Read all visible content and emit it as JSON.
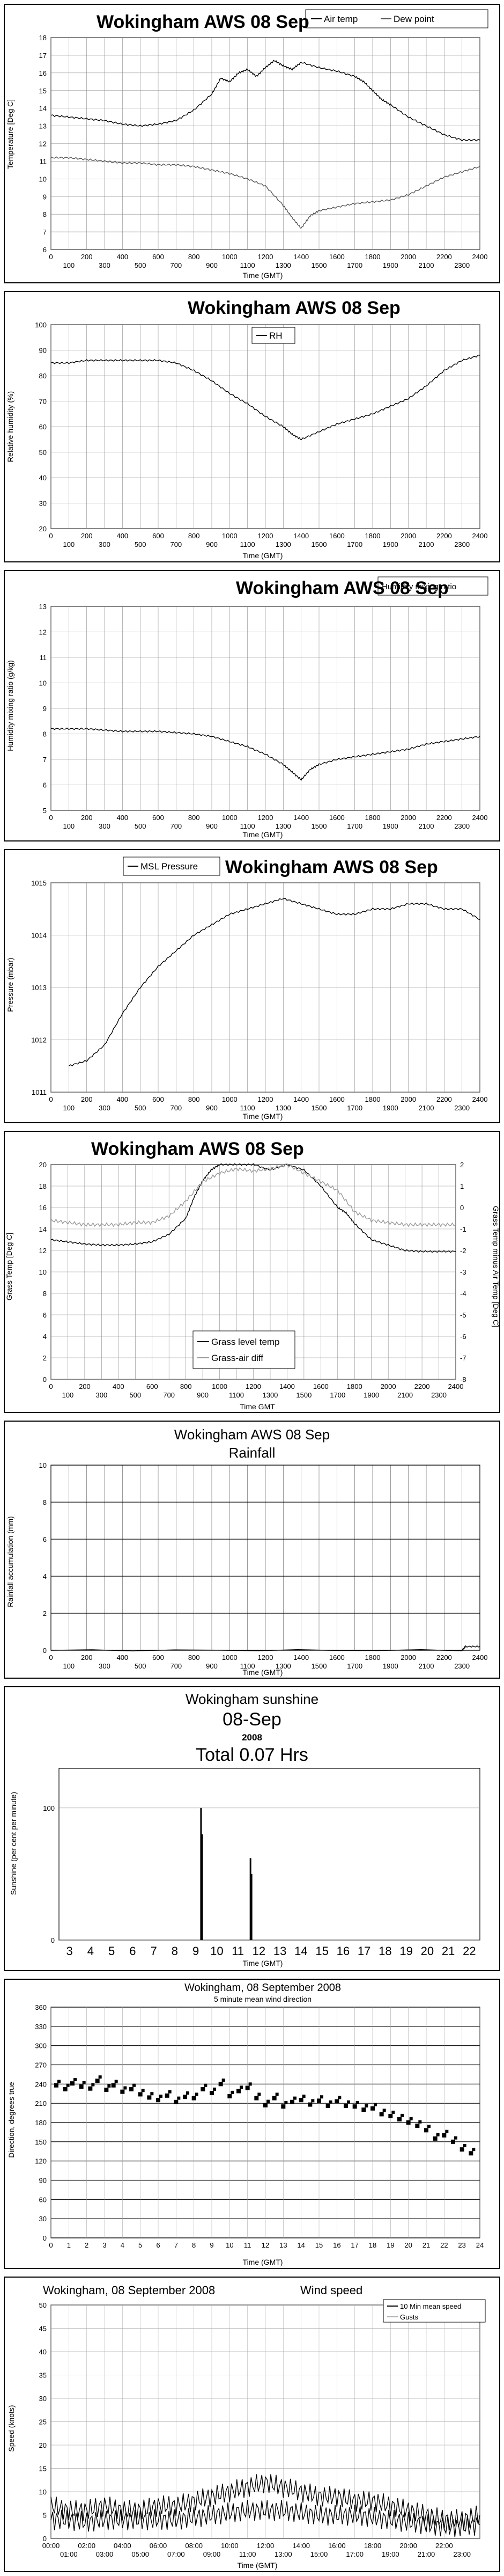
{
  "charts": [
    {
      "type": "line",
      "title": "Wokingham AWS 08 Sep",
      "xlabel": "Time (GMT)",
      "ylabel": "Temperature [Deg C]",
      "ylim": [
        6,
        18
      ],
      "yticks": [
        6,
        7,
        8,
        9,
        10,
        11,
        12,
        13,
        14,
        15,
        16,
        17,
        18
      ],
      "xticks_top": [
        "0",
        "200",
        "400",
        "600",
        "800",
        "1000",
        "1200",
        "1400",
        "1600",
        "1800",
        "2000",
        "2200",
        "2400"
      ],
      "xticks_bottom": [
        "100",
        "300",
        "500",
        "700",
        "900",
        "1100",
        "1300",
        "1500",
        "1700",
        "1900",
        "2100",
        "2300"
      ],
      "series": [
        {
          "name": "Air temp",
          "x": [
            0,
            100,
            200,
            300,
            400,
            500,
            600,
            700,
            800,
            900,
            950,
            1000,
            1050,
            1100,
            1150,
            1200,
            1250,
            1300,
            1350,
            1400,
            1500,
            1600,
            1700,
            1750,
            1800,
            1850,
            1900,
            2000,
            2100,
            2200,
            2300,
            2400
          ],
          "y": [
            13.6,
            13.5,
            13.4,
            13.3,
            13.1,
            13.0,
            13.1,
            13.3,
            13.9,
            14.8,
            15.7,
            15.5,
            16.0,
            16.2,
            15.8,
            16.3,
            16.7,
            16.4,
            16.2,
            16.6,
            16.3,
            16.1,
            15.8,
            15.5,
            15.0,
            14.5,
            14.2,
            13.5,
            13.0,
            12.5,
            12.2,
            12.2
          ]
        },
        {
          "name": "Dew point",
          "x": [
            0,
            100,
            200,
            300,
            400,
            500,
            600,
            700,
            800,
            900,
            1000,
            1100,
            1200,
            1300,
            1350,
            1400,
            1450,
            1500,
            1600,
            1700,
            1800,
            1900,
            2000,
            2100,
            2200,
            2300,
            2400
          ],
          "y": [
            11.2,
            11.2,
            11.1,
            11.0,
            10.9,
            10.9,
            10.8,
            10.8,
            10.7,
            10.5,
            10.3,
            10.0,
            9.6,
            8.5,
            7.8,
            7.2,
            7.9,
            8.2,
            8.4,
            8.6,
            8.7,
            8.8,
            9.1,
            9.6,
            10.1,
            10.4,
            10.7
          ]
        }
      ]
    },
    {
      "type": "line",
      "title": "Wokingham AWS 08 Sep",
      "xlabel": "Time (GMT)",
      "ylabel": "Relative humidity (%)",
      "ylim": [
        20,
        100
      ],
      "yticks": [
        20,
        30,
        40,
        50,
        60,
        70,
        80,
        90,
        100
      ],
      "xticks_top": [
        "0",
        "200",
        "400",
        "600",
        "800",
        "1000",
        "1200",
        "1400",
        "1600",
        "1800",
        "2000",
        "2200",
        "2400"
      ],
      "xticks_bottom": [
        "100",
        "300",
        "500",
        "700",
        "900",
        "1100",
        "1300",
        "1500",
        "1700",
        "1900",
        "2100",
        "2300"
      ],
      "series": [
        {
          "name": "RH",
          "x": [
            0,
            100,
            200,
            300,
            400,
            500,
            600,
            700,
            800,
            900,
            1000,
            1100,
            1200,
            1300,
            1350,
            1400,
            1500,
            1600,
            1700,
            1800,
            1900,
            2000,
            2100,
            2200,
            2300,
            2400
          ],
          "y": [
            85,
            85,
            86,
            86,
            86,
            86,
            86,
            85,
            82,
            78,
            73,
            69,
            64,
            60,
            57,
            55,
            58,
            61,
            63,
            65,
            68,
            71,
            76,
            82,
            86,
            88
          ]
        }
      ]
    },
    {
      "type": "line",
      "title": "Wokingham AWS 08 Sep",
      "xlabel": "Time (GMT)",
      "ylabel": "Humidity mixing ratio (g/kg)",
      "ylim": [
        5,
        13
      ],
      "yticks": [
        5,
        6,
        7,
        8,
        9,
        10,
        11,
        12,
        13
      ],
      "xticks_top": [
        "0",
        "200",
        "400",
        "600",
        "800",
        "1000",
        "1200",
        "1400",
        "1600",
        "1800",
        "2000",
        "2200",
        "2400"
      ],
      "xticks_bottom": [
        "100",
        "300",
        "500",
        "700",
        "900",
        "1100",
        "1300",
        "1500",
        "1700",
        "1900",
        "2100",
        "2300"
      ],
      "series": [
        {
          "name": "Humidity mixing ratio",
          "x": [
            0,
            100,
            200,
            300,
            400,
            500,
            600,
            700,
            800,
            900,
            1000,
            1100,
            1200,
            1300,
            1350,
            1400,
            1450,
            1500,
            1600,
            1700,
            1800,
            1900,
            2000,
            2100,
            2200,
            2300,
            2400
          ],
          "y": [
            8.2,
            8.2,
            8.2,
            8.15,
            8.1,
            8.1,
            8.1,
            8.05,
            8.0,
            7.9,
            7.7,
            7.5,
            7.2,
            6.8,
            6.5,
            6.2,
            6.6,
            6.8,
            7.0,
            7.1,
            7.2,
            7.3,
            7.4,
            7.6,
            7.7,
            7.8,
            7.9
          ]
        }
      ]
    },
    {
      "type": "line",
      "title": "Wokingham AWS 08 Sep",
      "xlabel": "Time (GMT)",
      "ylabel": "Pressure (mbar)",
      "ylim": [
        1011,
        1015
      ],
      "yticks": [
        1011,
        1012,
        1013,
        1014,
        1015
      ],
      "xticks_top": [
        "0",
        "200",
        "400",
        "600",
        "800",
        "1000",
        "1200",
        "1400",
        "1600",
        "1800",
        "2000",
        "2200",
        "2400"
      ],
      "xticks_bottom": [
        "100",
        "300",
        "500",
        "700",
        "900",
        "1100",
        "1300",
        "1500",
        "1700",
        "1900",
        "2100",
        "2300"
      ],
      "series": [
        {
          "name": "MSL Pressure",
          "x": [
            100,
            200,
            300,
            400,
            500,
            600,
            700,
            800,
            900,
            1000,
            1100,
            1200,
            1300,
            1400,
            1500,
            1600,
            1700,
            1800,
            1900,
            2000,
            2100,
            2200,
            2300,
            2400
          ],
          "y": [
            1011.5,
            1011.6,
            1011.9,
            1012.5,
            1013.0,
            1013.4,
            1013.7,
            1014.0,
            1014.2,
            1014.4,
            1014.5,
            1014.6,
            1014.7,
            1014.6,
            1014.5,
            1014.4,
            1014.4,
            1014.5,
            1014.5,
            1014.6,
            1014.6,
            1014.5,
            1014.5,
            1014.3
          ]
        }
      ]
    },
    {
      "type": "line",
      "title": "Wokingham AWS 08 Sep",
      "xlabel": "Time GMT",
      "ylabel": "Grass Temp [Deg C]",
      "ylabel_right": "Grass Temp minus Air Temp [Deg C]",
      "ylim": [
        0,
        20
      ],
      "ylim_right": [
        -8,
        2
      ],
      "yticks": [
        0,
        2,
        4,
        6,
        8,
        10,
        12,
        14,
        16,
        18,
        20
      ],
      "yticks_right": [
        -8,
        -7,
        -6,
        -5,
        -4,
        -3,
        -2,
        -1,
        0,
        1,
        2
      ],
      "xticks_top": [
        "0",
        "200",
        "400",
        "600",
        "800",
        "1000",
        "1200",
        "1400",
        "1600",
        "1800",
        "2000",
        "2200",
        "2400"
      ],
      "xticks_bottom": [
        "100",
        "300",
        "500",
        "700",
        "900",
        "1100",
        "1300",
        "1500",
        "1700",
        "1900",
        "2100",
        "2300"
      ],
      "series": [
        {
          "name": "Grass level temp",
          "x": [
            0,
            100,
            200,
            300,
            400,
            500,
            600,
            700,
            800,
            850,
            900,
            950,
            1000,
            1100,
            1200,
            1300,
            1400,
            1500,
            1600,
            1700,
            1750,
            1800,
            1900,
            2000,
            2100,
            2200,
            2300,
            2400
          ],
          "y": [
            13.0,
            12.8,
            12.6,
            12.5,
            12.5,
            12.6,
            12.8,
            13.5,
            15.0,
            17.0,
            18.5,
            19.5,
            20.0,
            20.0,
            20.0,
            19.5,
            20.0,
            19.5,
            18.0,
            16.0,
            15.5,
            14.5,
            13.0,
            12.5,
            12.0,
            11.9,
            11.9,
            11.9
          ]
        },
        {
          "name": "Grass-air diff",
          "x": [
            0,
            100,
            200,
            300,
            400,
            500,
            600,
            700,
            800,
            900,
            1000,
            1100,
            1200,
            1300,
            1400,
            1500,
            1600,
            1700,
            1800,
            1900,
            2000,
            2100,
            2200,
            2300,
            2400
          ],
          "y": [
            -0.6,
            -0.7,
            -0.8,
            -0.8,
            -0.8,
            -0.7,
            -0.7,
            -0.4,
            0.3,
            1.2,
            1.6,
            1.8,
            1.7,
            1.8,
            2.0,
            1.6,
            1.2,
            0.8,
            -0.2,
            -0.6,
            -0.7,
            -0.8,
            -0.8,
            -0.8,
            -0.8
          ],
          "axis": "right"
        }
      ]
    },
    {
      "type": "line",
      "title": "Wokingham AWS 08 Sep",
      "subtitle": "Rainfall",
      "xlabel": "Time (GMT)",
      "ylabel": "Rainfall accumulation (mm)",
      "ylim": [
        0,
        10
      ],
      "yticks": [
        0,
        2,
        4,
        6,
        8,
        10
      ],
      "xticks_top": [
        "0",
        "200",
        "400",
        "600",
        "800",
        "1000",
        "1200",
        "1400",
        "1600",
        "1800",
        "2000",
        "2200",
        "2400"
      ],
      "xticks_bottom": [
        "100",
        "300",
        "500",
        "700",
        "900",
        "1100",
        "1300",
        "1500",
        "1700",
        "1900",
        "2100",
        "2300"
      ],
      "series": [
        {
          "name": "Rainfall",
          "x": [
            0,
            2300,
            2320,
            2400
          ],
          "y": [
            0,
            0,
            0.2,
            0.2
          ]
        }
      ]
    },
    {
      "type": "bar",
      "title": "Wokingham sunshine",
      "date": "08-Sep",
      "year": "2008",
      "total": "Total 0.07 Hrs",
      "xlabel": "Time (GMT)",
      "ylabel": "Sunshine (per cent per minute)",
      "ylim": [
        0,
        130
      ],
      "yticks": [
        0,
        100
      ],
      "xlim": [
        2.5,
        22.5
      ],
      "xticks": [
        "3",
        "4",
        "5",
        "6",
        "7",
        "8",
        "9",
        "10",
        "11",
        "12",
        "13",
        "14",
        "15",
        "16",
        "17",
        "18",
        "19",
        "20",
        "21",
        "22"
      ],
      "bars": [
        {
          "x": 9.25,
          "value": 100
        },
        {
          "x": 9.3,
          "value": 80
        },
        {
          "x": 11.6,
          "value": 62
        },
        {
          "x": 11.65,
          "value": 50
        }
      ]
    },
    {
      "type": "scatter",
      "title": "Wokingham,  08 September 2008",
      "subtitle": "5 minute mean wind direction",
      "xlabel": "Time (GMT)",
      "ylabel": "Direction, degrees true",
      "ylim": [
        0,
        360
      ],
      "yticks": [
        0,
        30,
        60,
        90,
        120,
        150,
        180,
        210,
        240,
        270,
        300,
        330,
        360
      ],
      "xlim": [
        0,
        24
      ],
      "xticks": [
        "0",
        "1",
        "2",
        "3",
        "4",
        "5",
        "6",
        "7",
        "8",
        "9",
        "10",
        "11",
        "12",
        "13",
        "14",
        "15",
        "16",
        "17",
        "18",
        "19",
        "20",
        "21",
        "22",
        "23",
        "24"
      ],
      "series": [
        {
          "name": "Wind direction",
          "x": [
            0.3,
            0.8,
            1.2,
            1.7,
            2.2,
            2.6,
            3.1,
            3.5,
            4.0,
            4.5,
            5.0,
            5.5,
            6.0,
            6.5,
            7.0,
            7.5,
            8.0,
            8.5,
            9.0,
            9.5,
            10.0,
            10.5,
            11.0,
            11.5,
            12.0,
            12.5,
            13.0,
            13.5,
            14.0,
            14.5,
            15.0,
            15.5,
            16.0,
            16.5,
            17.0,
            17.5,
            18.0,
            18.5,
            19.0,
            19.5,
            20.0,
            20.5,
            21.0,
            21.5,
            22.0,
            22.5,
            23.0,
            23.5
          ],
          "y": [
            238,
            232,
            241,
            236,
            233,
            245,
            231,
            238,
            228,
            232,
            224,
            219,
            215,
            222,
            212,
            220,
            218,
            232,
            226,
            240,
            221,
            229,
            234,
            218,
            207,
            218,
            205,
            212,
            215,
            208,
            214,
            206,
            213,
            206,
            205,
            200,
            202,
            193,
            190,
            185,
            180,
            175,
            168,
            155,
            160,
            150,
            138,
            132
          ]
        }
      ]
    },
    {
      "type": "line",
      "title": "Wokingham,  08 September 2008",
      "subtitle": "Wind speed",
      "xlabel": "Time (GMT)",
      "ylabel": "Speed (knots)",
      "ylim": [
        0,
        50
      ],
      "yticks": [
        0,
        5,
        10,
        15,
        20,
        25,
        30,
        35,
        40,
        45,
        50
      ],
      "xlim": [
        0,
        24
      ],
      "xticks_top": [
        "00:00",
        "02:00",
        "04:00",
        "06:00",
        "08:00",
        "10:00",
        "12:00",
        "14:00",
        "16:00",
        "18:00",
        "20:00",
        "22:00"
      ],
      "xticks_bottom": [
        "01:00",
        "03:00",
        "05:00",
        "07:00",
        "09:00",
        "11:00",
        "13:00",
        "15:00",
        "17:00",
        "19:00",
        "21:00",
        "23:00"
      ],
      "series": [
        {
          "name": "10 Min mean speed",
          "x": [
            0,
            1,
            2,
            3,
            4,
            5,
            6,
            7,
            8,
            9,
            10,
            11,
            12,
            13,
            14,
            15,
            16,
            17,
            18,
            19,
            20,
            21,
            22,
            23,
            24
          ],
          "y": [
            4,
            4,
            3.5,
            4,
            4,
            4,
            4,
            4,
            4.5,
            5,
            5.5,
            6,
            6,
            6,
            5.5,
            5,
            5,
            5,
            4.5,
            4,
            3.5,
            3,
            2.5,
            2.5,
            3
          ]
        },
        {
          "name": "Gusts",
          "x": [
            0,
            1,
            2,
            3,
            4,
            5,
            6,
            7,
            8,
            9,
            10,
            11,
            12,
            13,
            14,
            15,
            16,
            17,
            18,
            19,
            20,
            21,
            22,
            23,
            24
          ],
          "y": [
            7,
            6,
            6,
            7,
            6,
            6,
            7,
            7,
            8,
            9,
            10,
            11,
            12,
            11,
            10,
            9,
            9,
            8,
            8,
            7,
            6,
            5,
            4,
            4,
            5
          ]
        }
      ]
    }
  ]
}
